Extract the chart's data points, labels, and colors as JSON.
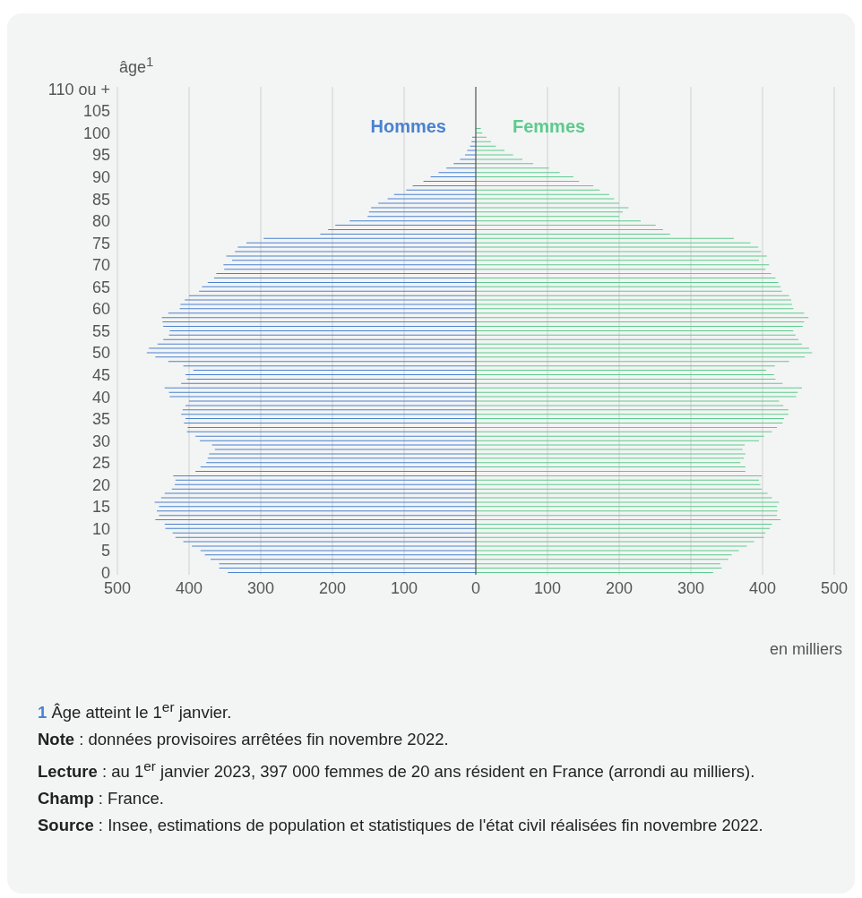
{
  "chart_data": {
    "type": "bar",
    "orientation": "horizontal",
    "stacked": true,
    "ylabel": "âge$^{1}$",
    "xlabel": "en milliers",
    "categories": [
      "110 ou +",
      null,
      null,
      null,
      null,
      "105",
      null,
      null,
      null,
      null,
      "100",
      null,
      null,
      null,
      null,
      "95",
      null,
      null,
      null,
      null,
      "90",
      null,
      null,
      null,
      null,
      "85",
      null,
      null,
      null,
      null,
      "80",
      null,
      null,
      null,
      null,
      "75",
      null,
      null,
      null,
      null,
      "70",
      null,
      null,
      null,
      null,
      "65",
      null,
      null,
      null,
      null,
      "60",
      null,
      null,
      null,
      null,
      "55",
      null,
      null,
      null,
      null,
      "50",
      null,
      null,
      null,
      null,
      "45",
      null,
      null,
      null,
      null,
      "40",
      null,
      null,
      null,
      null,
      "35",
      null,
      null,
      null,
      null,
      "30",
      null,
      null,
      null,
      null,
      "25",
      null,
      null,
      null,
      null,
      "20",
      null,
      null,
      null,
      null,
      "15",
      null,
      null,
      null,
      null,
      "10",
      null,
      null,
      null,
      null,
      "5",
      null,
      null,
      null,
      null,
      "0"
    ],
    "series": [
      {
        "name": "Hommes",
        "color": "#4a82cf",
        "values": [
          0,
          0,
          0,
          0,
          0,
          0,
          0,
          0,
          null,
          null,
          null,
          -5,
          -6,
          -8,
          -12,
          -15,
          -22,
          -31,
          -41,
          -52,
          -63,
          -73,
          -88,
          -97,
          -114,
          -123,
          -136,
          -146,
          -149,
          -151,
          -176,
          -196,
          -206,
          -217,
          -296,
          -320,
          -332,
          -336,
          -348,
          -340,
          -352,
          -351,
          -362,
          -365,
          -374,
          -382,
          -386,
          -400,
          -406,
          -412,
          -413,
          -429,
          -438,
          -437,
          -436,
          -427,
          -428,
          -436,
          -444,
          -456,
          -459,
          -447,
          -429,
          -408,
          -394,
          -405,
          -403,
          -411,
          -434,
          -428,
          -427,
          -400,
          -405,
          -409,
          -411,
          -405,
          -407,
          -402,
          -403,
          -391,
          -385,
          -368,
          -364,
          -372,
          -374,
          -376,
          -384,
          -391,
          -422,
          -419,
          -420,
          -424,
          -434,
          -439,
          -448,
          -442,
          -445,
          -442,
          -447,
          -434,
          -433,
          -423,
          -419,
          -408,
          -396,
          -384,
          -378,
          -370,
          -358,
          -358,
          -346
        ]
      },
      {
        "name": "Femmes",
        "color": "#5ccb8d",
        "values": [
          0,
          0,
          0,
          0,
          0,
          0,
          0,
          0,
          null,
          7,
          9,
          15,
          21,
          28,
          40,
          52,
          65,
          80,
          102,
          117,
          136,
          144,
          164,
          173,
          186,
          193,
          200,
          213,
          205,
          200,
          230,
          251,
          261,
          271,
          360,
          383,
          394,
          398,
          406,
          395,
          409,
          404,
          412,
          418,
          422,
          425,
          427,
          437,
          440,
          441,
          443,
          458,
          464,
          458,
          456,
          443,
          446,
          450,
          455,
          465,
          469,
          459,
          437,
          417,
          405,
          416,
          418,
          428,
          455,
          449,
          447,
          423,
          429,
          436,
          436,
          430,
          428,
          420,
          413,
          402,
          395,
          375,
          372,
          376,
          374,
          369,
          376,
          376,
          399,
          395,
          397,
          399,
          407,
          413,
          423,
          420,
          421,
          420,
          425,
          413,
          410,
          404,
          402,
          388,
          378,
          367,
          357,
          352,
          341,
          343,
          331
        ]
      }
    ],
    "xlim": [
      -500,
      500
    ],
    "xticks": [
      {
        "value": -500,
        "label": "500"
      },
      {
        "value": -400,
        "label": "400"
      },
      {
        "value": -300,
        "label": "300"
      },
      {
        "value": -200,
        "label": "200"
      },
      {
        "value": -100,
        "label": "100"
      },
      0,
      100,
      200,
      300,
      400,
      500
    ],
    "grid": "x",
    "legend": "top",
    "ref_lines": [
      {
        "axis": "x",
        "value": 0,
        "color": "#444444"
      }
    ],
    "annotations": [
      "1 Âge atteint le 1$^{er}$ janvier.",
      "Note : données provisoires arrêtées fin novembre 2022.",
      "Lecture : au 1$^{er}$ janvier 2023, 397 000 femmes de 20 ans résident en France (arrondi au milliers).",
      "Champ : France.",
      "Source : Insee, estimations de population et statistiques de l'état civil réalisées fin novembre 2022."
    ]
  }
}
